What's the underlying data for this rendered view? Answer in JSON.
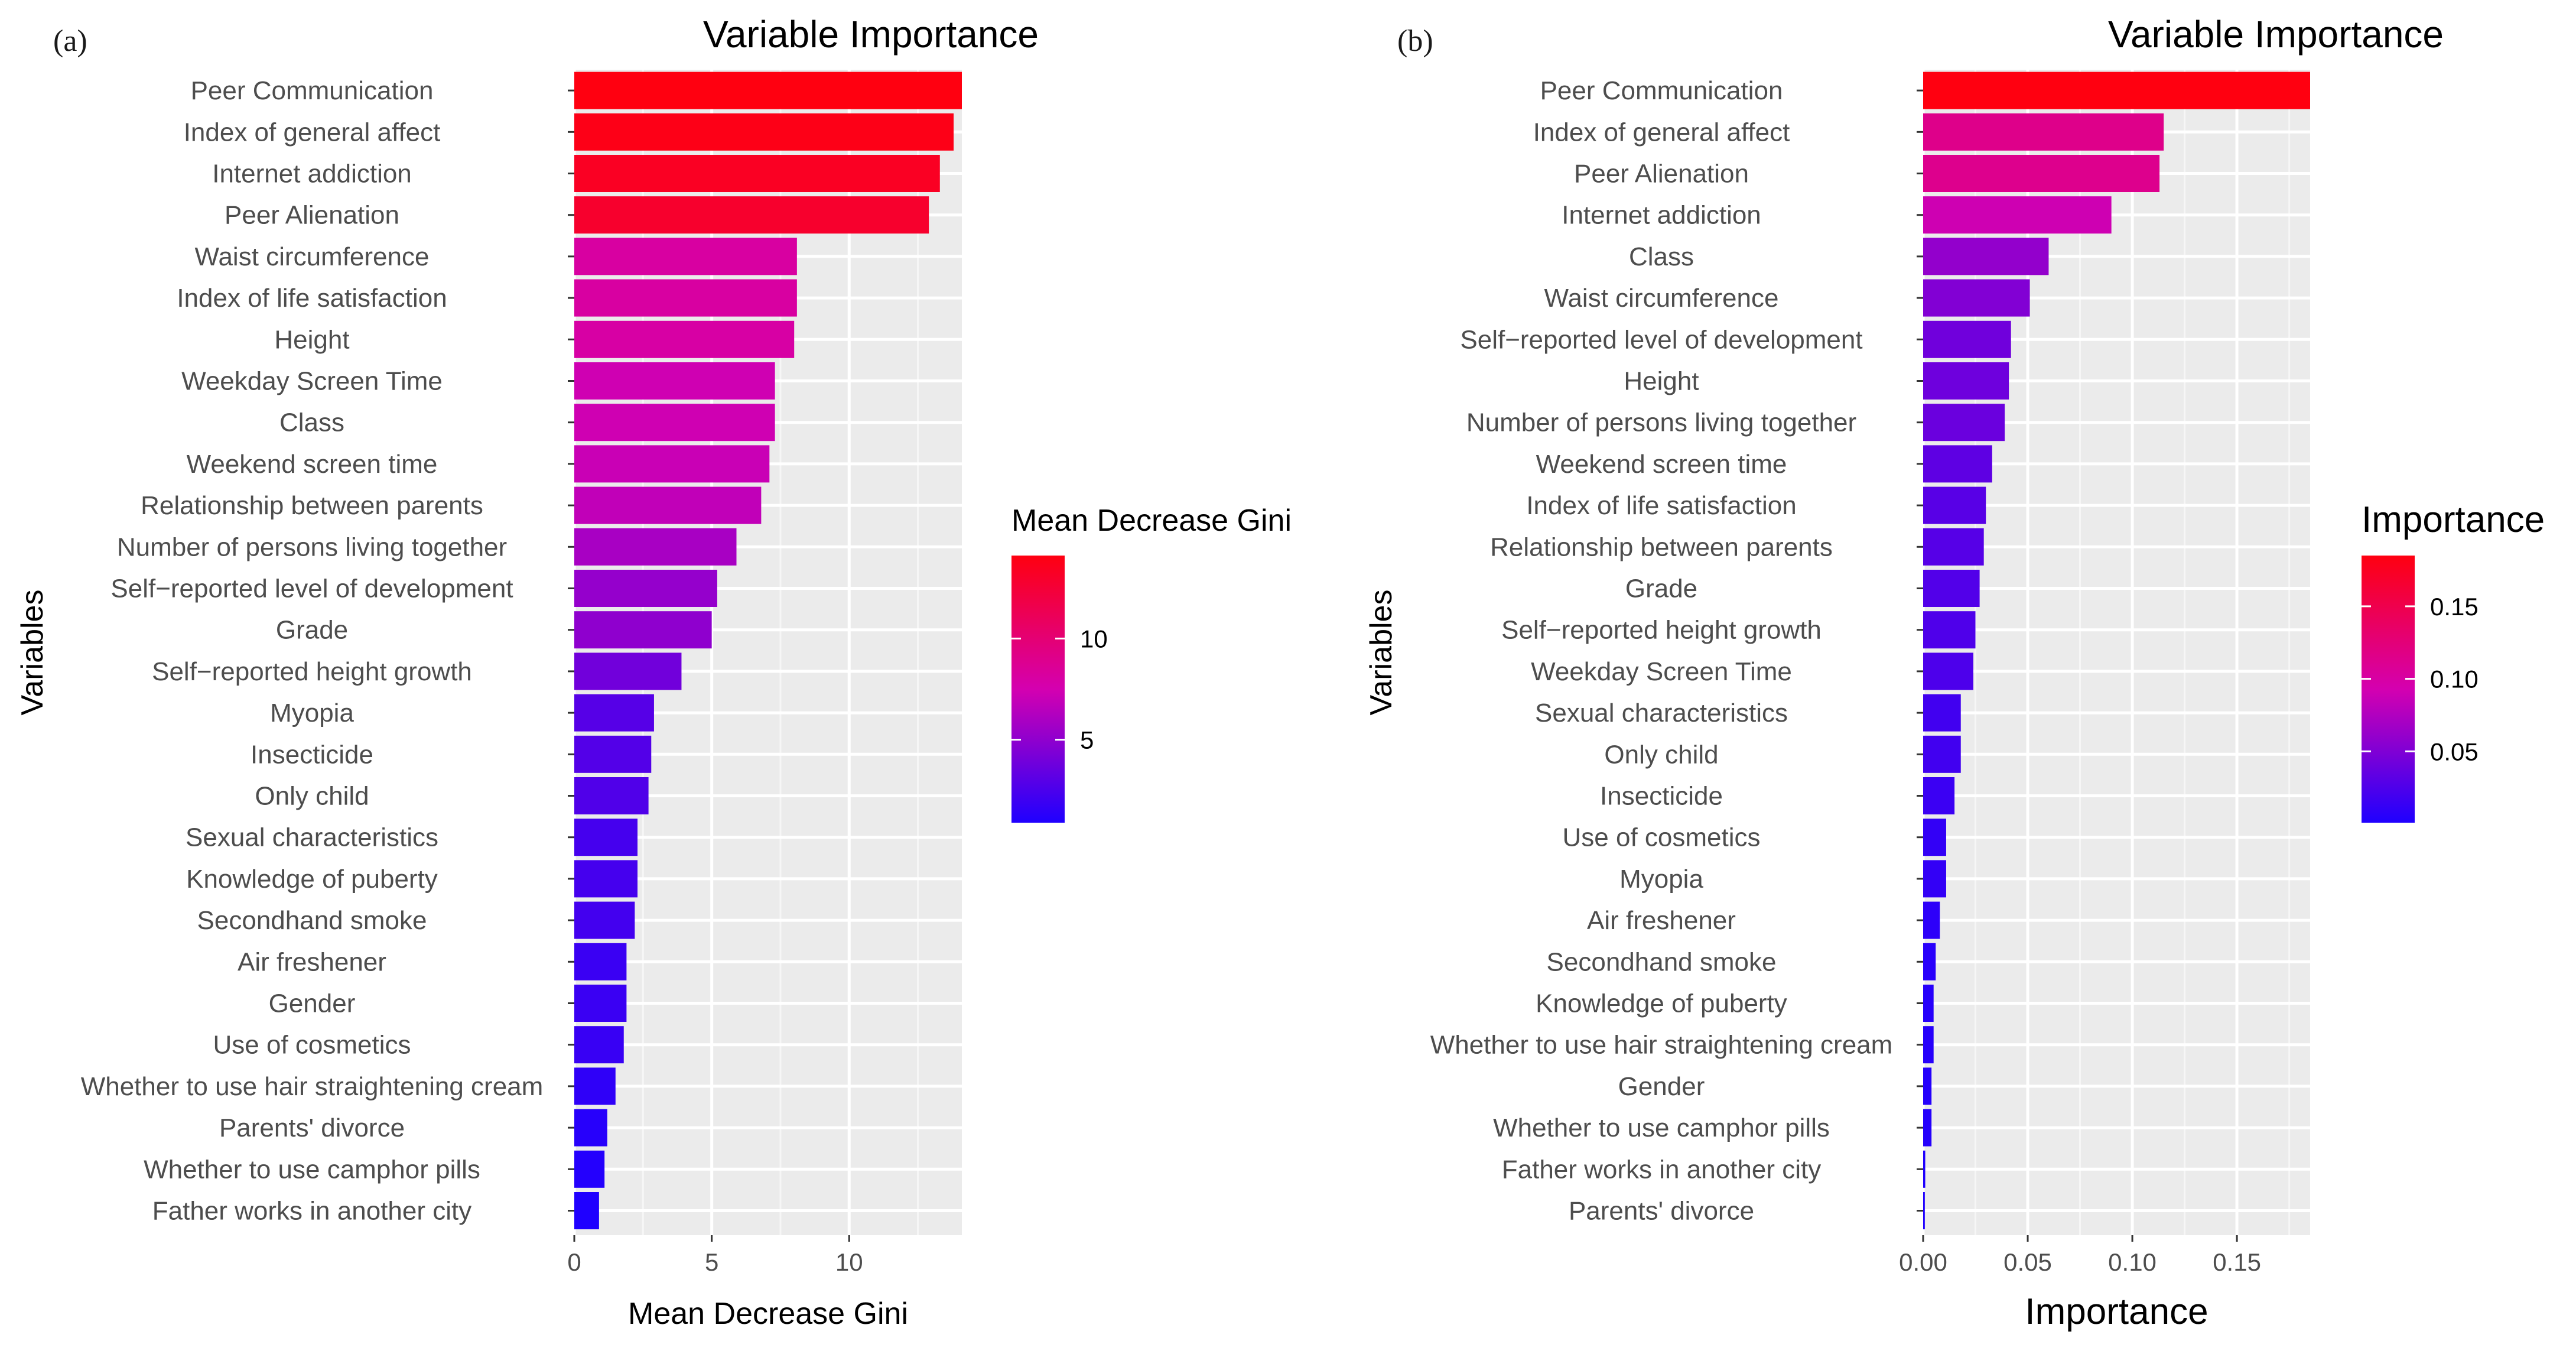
{
  "panels": [
    {
      "tag": "(a)",
      "chart_data": {
        "type": "bar",
        "orientation": "horizontal",
        "title": "Variable Importance",
        "xlabel": "Mean Decrease Gini",
        "ylabel": "Variables",
        "xlim": [
          0,
          14.1
        ],
        "xticks": [
          0,
          5,
          10
        ],
        "xtick_labels": [
          "0",
          "5",
          "10"
        ],
        "categories": [
          "Peer Communication",
          "Index of general affect",
          "Internet addiction",
          "Peer Alienation",
          "Waist circumference",
          "Index of life satisfaction",
          "Height",
          "Weekday Screen Time",
          "Class",
          "Weekend screen time",
          "Relationship between parents",
          "Number of persons living together",
          "Self−reported level of development",
          "Grade",
          "Self−reported height growth",
          "Myopia",
          "Insecticide",
          "Only child",
          "Sexual characteristics",
          "Knowledge of puberty",
          "Secondhand smoke",
          "Air freshener",
          "Gender",
          "Use of cosmetics",
          "Whether to use hair straightening cream",
          "Parents' divorce",
          "Whether to use camphor pills",
          "Father works in another city"
        ],
        "values": [
          14.1,
          13.8,
          13.3,
          12.9,
          8.1,
          8.1,
          8.0,
          7.3,
          7.3,
          7.1,
          6.8,
          5.9,
          5.2,
          5.0,
          3.9,
          2.9,
          2.8,
          2.7,
          2.3,
          2.3,
          2.2,
          1.9,
          1.9,
          1.8,
          1.5,
          1.2,
          1.1,
          0.9
        ],
        "legend": {
          "title": "Mean Decrease Gini",
          "ticks": [
            5,
            10
          ],
          "tick_labels": [
            "5",
            "10"
          ],
          "min": 0.9,
          "max": 14.1,
          "position": "right"
        },
        "colors": {
          "low": "#1f00ff",
          "mid": "#d400b0",
          "high": "#ff0010"
        }
      }
    },
    {
      "tag": "(b)",
      "chart_data": {
        "type": "bar",
        "orientation": "horizontal",
        "title": "Variable Importance",
        "xlabel": "Importance",
        "ylabel": "Variables",
        "xlim": [
          0,
          0.185
        ],
        "xticks": [
          0,
          0.05,
          0.1,
          0.15
        ],
        "xtick_labels": [
          "0.00",
          "0.05",
          "0.10",
          "0.15"
        ],
        "categories": [
          "Peer Communication",
          "Index of general affect",
          "Peer Alienation",
          "Internet addiction",
          "Class",
          "Waist circumference",
          "Self−reported level of development",
          "Height",
          "Number of persons living together",
          "Weekend screen time",
          "Index of life satisfaction",
          "Relationship between parents",
          "Grade",
          "Self−reported height growth",
          "Weekday Screen Time",
          "Sexual characteristics",
          "Only child",
          "Insecticide",
          "Use of cosmetics",
          "Myopia",
          "Air freshener",
          "Secondhand smoke",
          "Knowledge of puberty",
          "Whether to use hair straightening cream",
          "Gender",
          "Whether to use camphor pills",
          "Father works in another city",
          "Parents' divorce"
        ],
        "values": [
          0.185,
          0.115,
          0.113,
          0.09,
          0.06,
          0.051,
          0.042,
          0.041,
          0.039,
          0.033,
          0.03,
          0.029,
          0.027,
          0.025,
          0.024,
          0.018,
          0.018,
          0.015,
          0.011,
          0.011,
          0.008,
          0.006,
          0.005,
          0.005,
          0.004,
          0.004,
          0.001,
          0.0008
        ],
        "legend": {
          "title": "Importance",
          "ticks": [
            0.05,
            0.1,
            0.15
          ],
          "tick_labels": [
            "0.05",
            "0.10",
            "0.15"
          ],
          "min": 0.0008,
          "max": 0.185,
          "position": "right"
        },
        "colors": {
          "low": "#1f00ff",
          "mid": "#d400b0",
          "high": "#ff0010"
        }
      }
    }
  ]
}
